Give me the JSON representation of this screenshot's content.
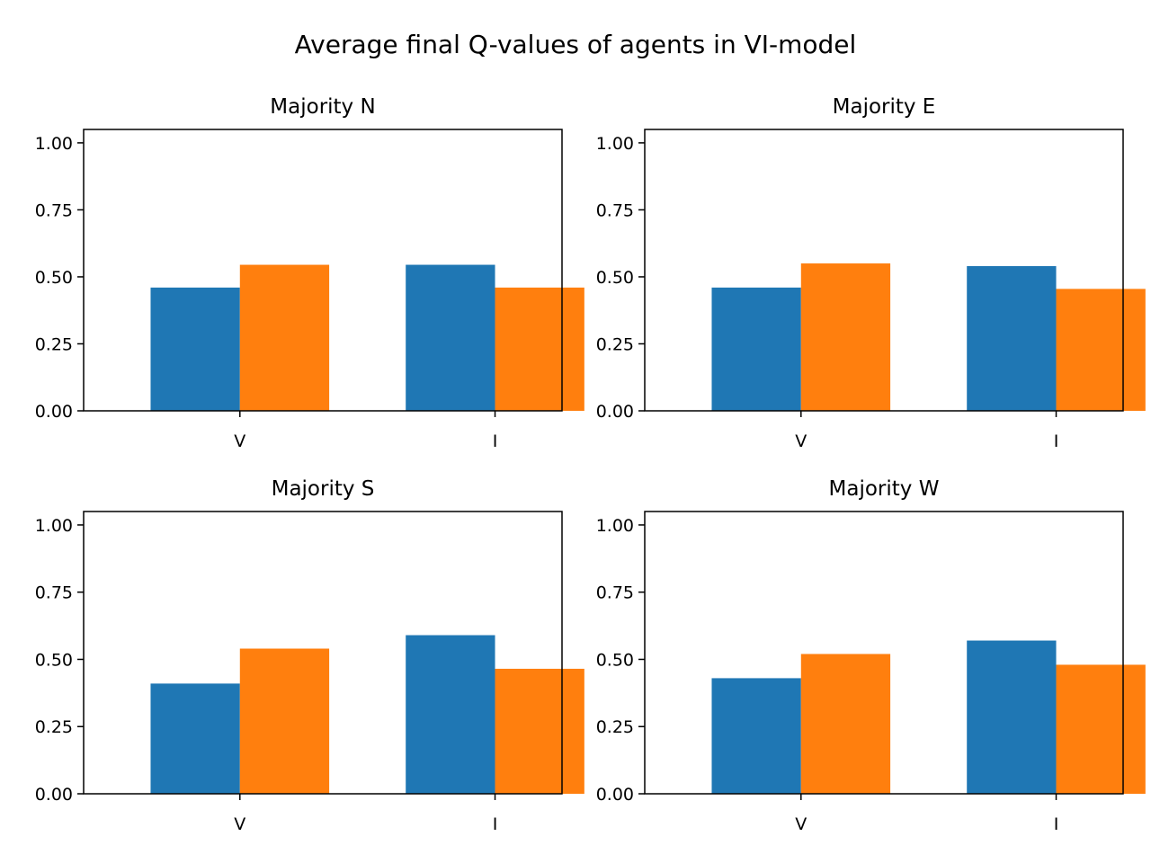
{
  "figure": {
    "suptitle": "Average final Q-values of agents in VI-model"
  },
  "colors": {
    "series_1": "#1f77b4",
    "series_2": "#ff7f0e"
  },
  "chart_data": [
    {
      "type": "bar",
      "title": "Majority N",
      "categories": [
        "V",
        "I"
      ],
      "series": [
        {
          "values": [
            0.46,
            0.545
          ]
        },
        {
          "values": [
            0.545,
            0.46
          ]
        }
      ],
      "ylim": [
        0,
        1.05
      ],
      "yticks": [
        "0.00",
        "0.25",
        "0.50",
        "0.75",
        "1.00"
      ],
      "grid": false
    },
    {
      "type": "bar",
      "title": "Majority E",
      "categories": [
        "V",
        "I"
      ],
      "series": [
        {
          "values": [
            0.46,
            0.54
          ]
        },
        {
          "values": [
            0.55,
            0.455
          ]
        }
      ],
      "ylim": [
        0,
        1.05
      ],
      "yticks": [
        "0.00",
        "0.25",
        "0.50",
        "0.75",
        "1.00"
      ],
      "grid": false
    },
    {
      "type": "bar",
      "title": "Majority S",
      "categories": [
        "V",
        "I"
      ],
      "series": [
        {
          "values": [
            0.41,
            0.59
          ]
        },
        {
          "values": [
            0.54,
            0.465
          ]
        }
      ],
      "ylim": [
        0,
        1.05
      ],
      "yticks": [
        "0.00",
        "0.25",
        "0.50",
        "0.75",
        "1.00"
      ],
      "grid": false
    },
    {
      "type": "bar",
      "title": "Majority W",
      "categories": [
        "V",
        "I"
      ],
      "series": [
        {
          "values": [
            0.43,
            0.57
          ]
        },
        {
          "values": [
            0.52,
            0.48
          ]
        }
      ],
      "ylim": [
        0,
        1.05
      ],
      "yticks": [
        "0.00",
        "0.25",
        "0.50",
        "0.75",
        "1.00"
      ],
      "grid": false
    }
  ]
}
